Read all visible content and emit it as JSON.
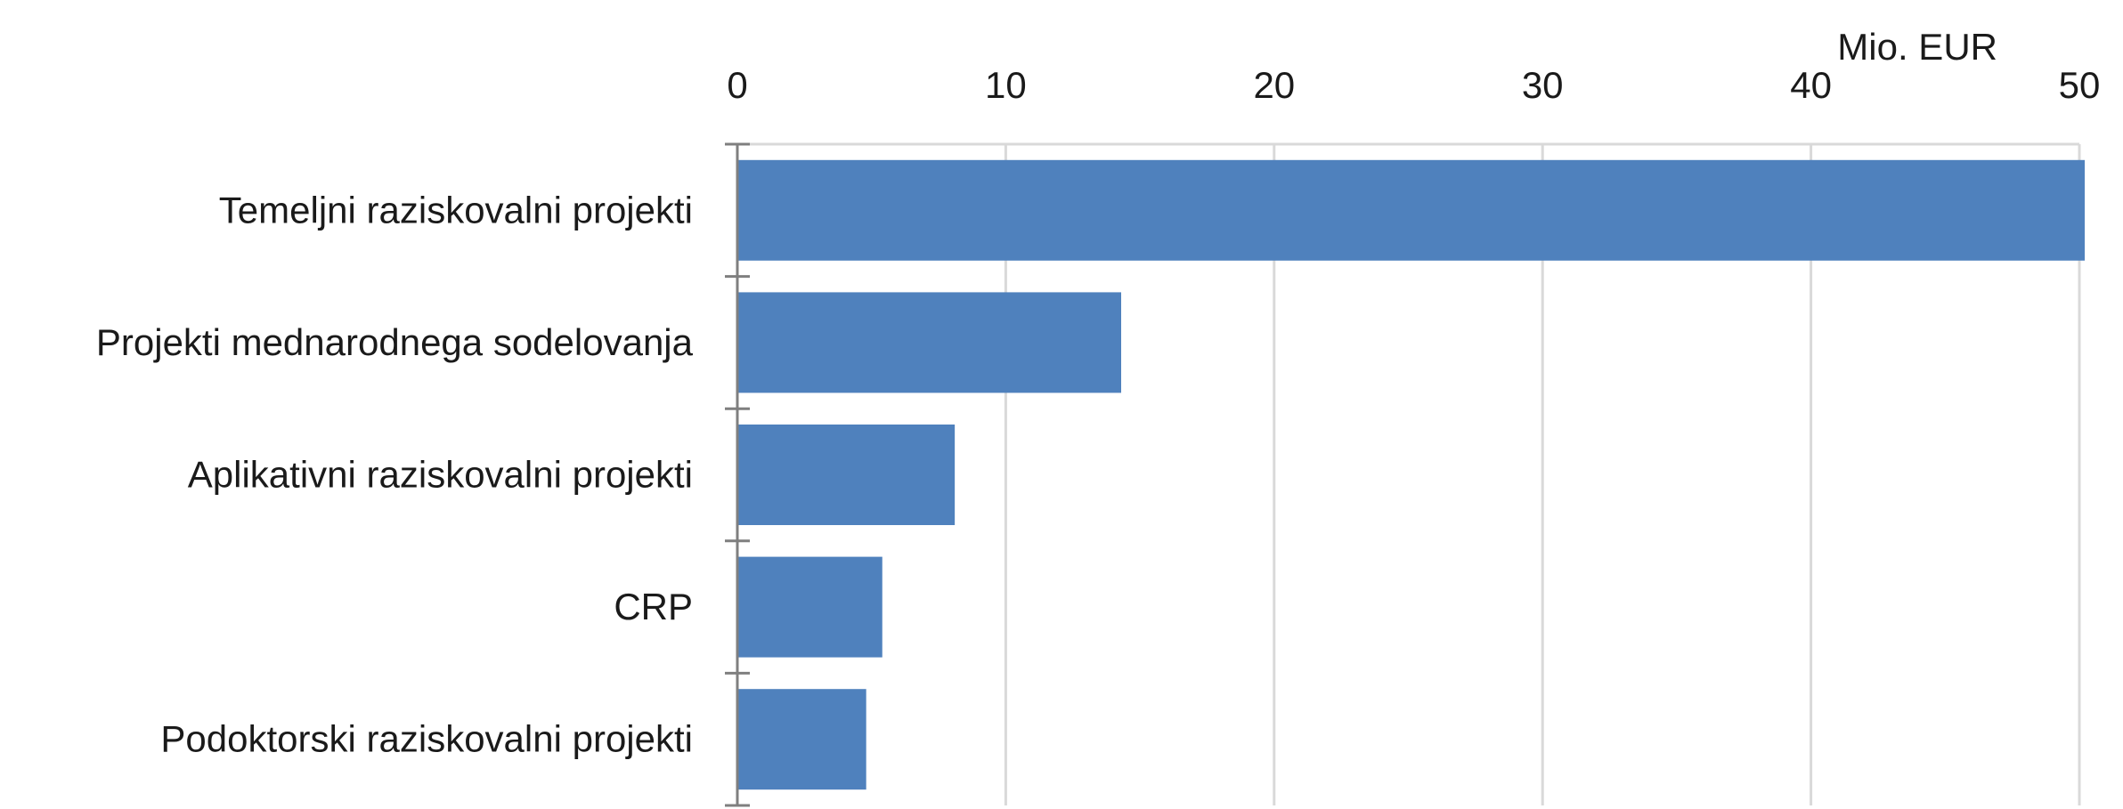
{
  "chart_data": {
    "type": "bar",
    "orientation": "horizontal",
    "categories": [
      "Temeljni raziskovalni projekti",
      "Projekti mednarodnega sodelovanja",
      "Aplikativni raziskovalni projekti",
      "CRP",
      "Podoktorski raziskovalni projekti"
    ],
    "values": [
      50.2,
      14.3,
      8.1,
      5.4,
      4.8
    ],
    "unit_label": "Mio. EUR",
    "xlim": [
      0,
      50
    ],
    "xticks": [
      0,
      10,
      20,
      30,
      40,
      50
    ],
    "xtick_labels": [
      "0",
      "10",
      "20",
      "30",
      "40",
      "50"
    ],
    "x_axis_position": "top",
    "grid": true,
    "legend": "none",
    "colors": {
      "bar": "#4f81bd",
      "grid": "#d9d9d9",
      "axis": "#7f7f7f",
      "text": "#1a1a1a"
    }
  }
}
